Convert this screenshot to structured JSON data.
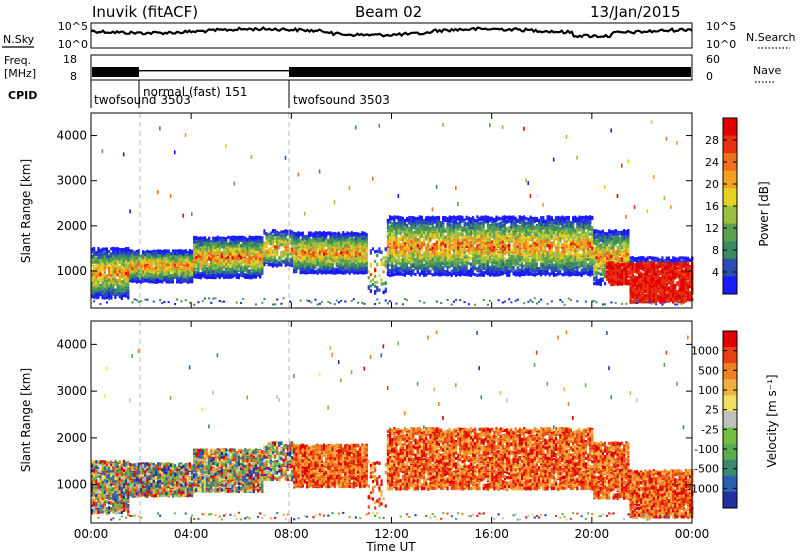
{
  "header": {
    "title": "Inuvik (fitACF)",
    "beam": "Beam 02",
    "date": "13/Jan/2015"
  },
  "top_panels": {
    "nsky": {
      "label": "N.Sky",
      "tick_top": "10^5",
      "tick_bottom": "10^0"
    },
    "nsearch": {
      "label": "N.Search",
      "tick_top": "10^5",
      "tick_bottom": "10^0"
    },
    "freq": {
      "label_line1": "Freq.",
      "label_line2": "[MHz]",
      "tick_top": "18",
      "tick_bottom": "8"
    },
    "nave": {
      "label": "Nave",
      "tick_top": "60",
      "tick_bottom": "0"
    },
    "cpid": {
      "label": "CPID",
      "segments": [
        {
          "name": "twofsound 3503",
          "start_h": 0,
          "end_h": 2
        },
        {
          "name": "normal (fast) 151",
          "start_h": 2,
          "end_h": 8
        },
        {
          "name": "twofsound 3503",
          "start_h": 8,
          "end_h": 24
        }
      ]
    }
  },
  "chart_data": [
    {
      "type": "heatmap",
      "title": "Power",
      "ylabel": "Slant Range [km]",
      "xlabel": "Time UT",
      "xlim": [
        0,
        24
      ],
      "ylim": [
        180,
        4500
      ],
      "yticks": [
        "1000",
        "2000",
        "3000",
        "4000"
      ],
      "colorbar": {
        "label": "Power [dB]",
        "ticks": [
          "28",
          "24",
          "20",
          "16",
          "12",
          "8",
          "4"
        ],
        "range": [
          0,
          30
        ],
        "colors": [
          "#1a1aff",
          "#2a4fb0",
          "#3a8a60",
          "#5aa050",
          "#9ac040",
          "#e8d020",
          "#f5a020",
          "#f07020",
          "#e83010",
          "#e00000"
        ]
      }
    },
    {
      "type": "heatmap",
      "title": "Velocity",
      "ylabel": "Slant Range [km]",
      "xlabel": "Time UT",
      "xlim": [
        0,
        24
      ],
      "ylim": [
        180,
        4500
      ],
      "yticks": [
        "1000",
        "2000",
        "3000",
        "4000"
      ],
      "colorbar": {
        "label": "Velocity [m s⁻¹]",
        "ticks": [
          "1000",
          "500",
          "100",
          "25",
          "-25",
          "-100",
          "-500",
          "-1000"
        ],
        "colors": [
          "#2030a0",
          "#2a60b0",
          "#3a8a70",
          "#5aaa50",
          "#70c040",
          "#c0c0c0",
          "#f0e060",
          "#f0b040",
          "#f08020",
          "#e84010",
          "#e00000"
        ]
      }
    }
  ],
  "x_axis": {
    "ticks": [
      "00:00",
      "04:00",
      "08:00",
      "12:00",
      "16:00",
      "20:00",
      "00:00"
    ],
    "label": "Time UT"
  }
}
